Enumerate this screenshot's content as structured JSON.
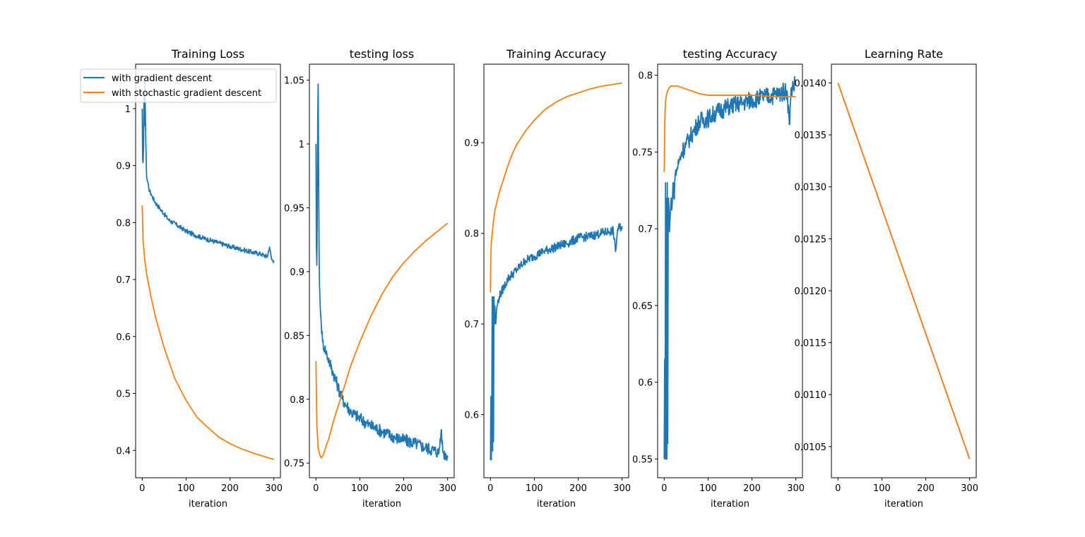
{
  "figure": {
    "legend": {
      "entries": [
        {
          "label": "with gradient descent",
          "color": "#1f77b4"
        },
        {
          "label": "with stochastic gradient descent",
          "color": "#ff7f0e"
        }
      ],
      "placement": "top-left of first panel"
    }
  },
  "chart_data": [
    {
      "type": "line",
      "title": "Training Loss",
      "xlabel": "iteration",
      "ylabel": "",
      "xlim": [
        -15,
        315
      ],
      "ylim": [
        0.352,
        1.078
      ],
      "xticks": [
        0,
        100,
        200,
        300
      ],
      "yticks": [
        0.4,
        0.5,
        0.6,
        0.7,
        0.8,
        0.9,
        1.0
      ],
      "grid": false,
      "series": [
        {
          "name": "with gradient descent",
          "color": "#1f77b4",
          "x": [
            0,
            1,
            2,
            3,
            4,
            5,
            6,
            8,
            10,
            15,
            20,
            30,
            40,
            50,
            60,
            80,
            100,
            120,
            150,
            180,
            200,
            230,
            250,
            270,
            285,
            290,
            295,
            300
          ],
          "y": [
            1.0,
            0.91,
            0.905,
            0.93,
            1.02,
            0.97,
            1.05,
            0.95,
            0.88,
            0.86,
            0.85,
            0.835,
            0.825,
            0.815,
            0.805,
            0.795,
            0.785,
            0.778,
            0.77,
            0.763,
            0.758,
            0.752,
            0.748,
            0.745,
            0.74,
            0.757,
            0.735,
            0.733
          ],
          "noise": 0.004
        },
        {
          "name": "with stochastic gradient descent",
          "color": "#ff7f0e",
          "x": [
            0,
            2,
            5,
            10,
            20,
            30,
            50,
            75,
            100,
            125,
            150,
            175,
            200,
            225,
            250,
            275,
            300
          ],
          "y": [
            0.83,
            0.77,
            0.74,
            0.71,
            0.67,
            0.635,
            0.58,
            0.525,
            0.488,
            0.458,
            0.44,
            0.423,
            0.412,
            0.403,
            0.396,
            0.39,
            0.384
          ],
          "noise": 0
        }
      ]
    },
    {
      "type": "line",
      "title": "testing loss",
      "xlabel": "iteration",
      "ylabel": "",
      "xlim": [
        -15,
        315
      ],
      "ylim": [
        0.7385,
        1.0625
      ],
      "xticks": [
        0,
        100,
        200,
        300
      ],
      "yticks": [
        0.75,
        0.8,
        0.85,
        0.9,
        0.95,
        1.0,
        1.05
      ],
      "grid": false,
      "series": [
        {
          "name": "with gradient descent",
          "color": "#1f77b4",
          "x": [
            0,
            1,
            2,
            3,
            4,
            5,
            6,
            7,
            8,
            10,
            12,
            15,
            20,
            25,
            30,
            40,
            50,
            60,
            70,
            80,
            100,
            120,
            150,
            180,
            200,
            230,
            250,
            270,
            280,
            285,
            290,
            300
          ],
          "y": [
            1.0,
            0.92,
            0.905,
            0.95,
            1.02,
            1.047,
            0.98,
            0.92,
            0.89,
            0.87,
            0.86,
            0.845,
            0.84,
            0.835,
            0.83,
            0.82,
            0.81,
            0.8,
            0.795,
            0.79,
            0.785,
            0.78,
            0.775,
            0.77,
            0.768,
            0.765,
            0.762,
            0.76,
            0.758,
            0.775,
            0.758,
            0.756
          ],
          "noise": 0.005
        },
        {
          "name": "with stochastic gradient descent",
          "color": "#ff7f0e",
          "x": [
            0,
            2,
            5,
            8,
            12,
            16,
            20,
            30,
            40,
            60,
            80,
            100,
            125,
            150,
            175,
            200,
            225,
            250,
            275,
            300
          ],
          "y": [
            0.83,
            0.78,
            0.762,
            0.757,
            0.754,
            0.756,
            0.76,
            0.77,
            0.783,
            0.805,
            0.827,
            0.845,
            0.865,
            0.882,
            0.896,
            0.907,
            0.916,
            0.924,
            0.931,
            0.938
          ],
          "noise": 0
        }
      ]
    },
    {
      "type": "line",
      "title": "Training Accuracy",
      "xlabel": "iteration",
      "ylabel": "",
      "xlim": [
        -15,
        315
      ],
      "ylim": [
        0.5304,
        0.9866
      ],
      "xticks": [
        0,
        100,
        200,
        300
      ],
      "yticks": [
        0.6,
        0.7,
        0.8,
        0.9
      ],
      "grid": false,
      "series": [
        {
          "name": "with gradient descent",
          "color": "#1f77b4",
          "x": [
            0,
            1,
            2,
            3,
            4,
            5,
            6,
            7,
            8,
            9,
            10,
            12,
            15,
            20,
            30,
            40,
            50,
            60,
            80,
            100,
            120,
            150,
            180,
            200,
            230,
            250,
            270,
            280,
            285,
            290,
            300
          ],
          "y": [
            0.55,
            0.62,
            0.55,
            0.6,
            0.73,
            0.56,
            0.73,
            0.57,
            0.73,
            0.7,
            0.72,
            0.7,
            0.72,
            0.73,
            0.74,
            0.75,
            0.755,
            0.76,
            0.77,
            0.775,
            0.78,
            0.785,
            0.79,
            0.795,
            0.797,
            0.8,
            0.802,
            0.803,
            0.78,
            0.805,
            0.808
          ],
          "noise": 0.005
        },
        {
          "name": "with stochastic gradient descent",
          "color": "#ff7f0e",
          "x": [
            0,
            1,
            2,
            4,
            6,
            10,
            15,
            20,
            30,
            40,
            50,
            60,
            80,
            100,
            125,
            150,
            175,
            200,
            225,
            250,
            275,
            300
          ],
          "y": [
            0.735,
            0.78,
            0.79,
            0.8,
            0.81,
            0.825,
            0.835,
            0.845,
            0.86,
            0.875,
            0.888,
            0.898,
            0.913,
            0.925,
            0.937,
            0.945,
            0.951,
            0.955,
            0.959,
            0.962,
            0.964,
            0.966
          ],
          "noise": 0
        }
      ]
    },
    {
      "type": "line",
      "title": "testing Accuracy",
      "xlabel": "iteration",
      "ylabel": "",
      "xlim": [
        -15,
        315
      ],
      "ylim": [
        0.5378,
        0.8072
      ],
      "xticks": [
        0,
        100,
        200,
        300
      ],
      "yticks": [
        0.55,
        0.6,
        0.65,
        0.7,
        0.75,
        0.8
      ],
      "grid": false,
      "series": [
        {
          "name": "with gradient descent",
          "color": "#1f77b4",
          "x": [
            0,
            1,
            2,
            3,
            4,
            5,
            6,
            7,
            8,
            9,
            10,
            12,
            14,
            16,
            18,
            20,
            22,
            25,
            30,
            35,
            40,
            50,
            60,
            70,
            80,
            100,
            120,
            150,
            180,
            200,
            230,
            250,
            270,
            280,
            285,
            290,
            300
          ],
          "y": [
            0.55,
            0.615,
            0.55,
            0.73,
            0.55,
            0.72,
            0.55,
            0.73,
            0.56,
            0.7,
            0.72,
            0.698,
            0.71,
            0.72,
            0.715,
            0.73,
            0.72,
            0.735,
            0.74,
            0.745,
            0.75,
            0.755,
            0.76,
            0.765,
            0.77,
            0.772,
            0.776,
            0.78,
            0.782,
            0.784,
            0.786,
            0.787,
            0.789,
            0.79,
            0.768,
            0.792,
            0.795
          ],
          "noise": 0.006
        },
        {
          "name": "with stochastic gradient descent",
          "color": "#ff7f0e",
          "x": [
            0,
            1,
            2,
            3,
            5,
            8,
            12,
            16,
            20,
            30,
            40,
            60,
            80,
            100,
            125,
            150,
            175,
            200,
            250,
            300
          ],
          "y": [
            0.737,
            0.765,
            0.777,
            0.783,
            0.787,
            0.79,
            0.792,
            0.793,
            0.793,
            0.793,
            0.792,
            0.79,
            0.788,
            0.787,
            0.787,
            0.787,
            0.787,
            0.787,
            0.786,
            0.786
          ],
          "noise": 0
        }
      ]
    },
    {
      "type": "line",
      "title": "Learning Rate",
      "xlabel": "iteration",
      "ylabel": "",
      "xlim": [
        -15,
        315
      ],
      "ylim": [
        0.0102,
        0.01418
      ],
      "xticks": [
        0,
        100,
        200,
        300
      ],
      "yticks": [
        0.0105,
        0.011,
        0.0115,
        0.012,
        0.0125,
        0.013,
        0.0135,
        0.014
      ],
      "ytick_labels": [
        "0.0105",
        "0.0110",
        "0.0115",
        "0.0120",
        "0.0125",
        "0.0130",
        "0.0135",
        "0.0140"
      ],
      "grid": false,
      "series": [
        {
          "name": "with gradient descent",
          "color": "#1f77b4",
          "x": [
            0,
            300
          ],
          "y": [
            0.014,
            0.01038
          ],
          "noise": 0
        },
        {
          "name": "with stochastic gradient descent",
          "color": "#ff7f0e",
          "x": [
            0,
            300
          ],
          "y": [
            0.014,
            0.01038
          ],
          "noise": 0
        }
      ]
    }
  ]
}
